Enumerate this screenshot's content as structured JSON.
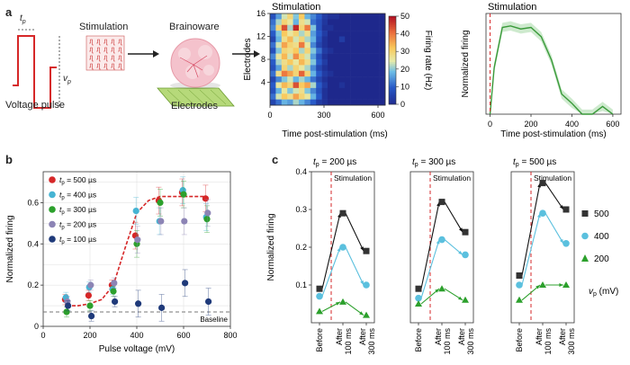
{
  "panel_a": {
    "label": "a",
    "tp_label": "t",
    "tp_sub": "p",
    "vp_label": "v",
    "vp_sub": "p",
    "pulse_caption": "Voltage pulse",
    "stimulation_caption": "Stimulation",
    "brainoware_caption": "Brainoware",
    "electrodes_caption": "Electrodes",
    "heatmap_title": "Stimulation",
    "heatmap_ylabel": "Electrodes",
    "heatmap_xlabel": "Time post-stimulation (ms)",
    "heatmap_xticks": [
      "0",
      "300",
      "600"
    ],
    "heatmap_yticks": [
      "16",
      "12",
      "8",
      "4"
    ],
    "colorbar_label": "Firing rate (Hz)",
    "colorbar_ticks": [
      "50",
      "40",
      "30",
      "20",
      "10",
      "0"
    ],
    "line_title": "Stimulation",
    "line_ylabel": "Normalized firing",
    "line_xlabel": "Time post-stimulation (ms)",
    "line_xticks": [
      "0",
      "200",
      "400",
      "600"
    ],
    "colors": {
      "green": "#5cb85c",
      "red": "#d62728",
      "blue": "#1f3fa0"
    }
  },
  "panel_b": {
    "label": "b",
    "xlabel": "Pulse voltage (mV)",
    "ylabel": "Normalized firing",
    "baseline_label": "Baseline",
    "legend": [
      {
        "t": "t",
        "sub": "p",
        "text": " = 500 µs",
        "color": "#d62728"
      },
      {
        "t": "t",
        "sub": "p",
        "text": " = 400 µs",
        "color": "#46b4d3"
      },
      {
        "t": "t",
        "sub": "p",
        "text": " = 300 µs",
        "color": "#2ca02c"
      },
      {
        "t": "t",
        "sub": "p",
        "text": " = 200 µs",
        "color": "#8c84b5"
      },
      {
        "t": "t",
        "sub": "p",
        "text": " = 100 µs",
        "color": "#1f3a7a"
      }
    ]
  },
  "panel_c": {
    "label": "c",
    "ylabel": "Normalized firing",
    "stim_label": "Stimulation",
    "subplots": [
      {
        "title_t": "t",
        "title_sub": "p",
        "title_rest": " = 200 µs"
      },
      {
        "title_t": "t",
        "title_sub": "p",
        "title_rest": " = 300 µs"
      },
      {
        "title_t": "t",
        "title_sub": "p",
        "title_rest": " = 500 µs"
      }
    ],
    "xticks": [
      "Before",
      "After 100 ms",
      "After 300 ms"
    ],
    "legend": [
      {
        "value": "500",
        "marker": "square",
        "color": "#333333"
      },
      {
        "value": "400",
        "marker": "circle",
        "color": "#5bc0de"
      },
      {
        "value": "200",
        "marker": "triangle",
        "color": "#2ca02c"
      }
    ],
    "legend_unit_v": "v",
    "legend_unit_sub": "p",
    "legend_unit_rest": " (mV)"
  },
  "chart_data": [
    {
      "id": "heatmap",
      "type": "heatmap",
      "title": "Stimulation",
      "xlabel": "Time post-stimulation (ms)",
      "ylabel": "Electrodes",
      "xlim": [
        0,
        600
      ],
      "ylim": [
        0,
        16
      ],
      "colorbar": {
        "label": "Firing rate (Hz)",
        "range": [
          0,
          50
        ]
      },
      "note": "approximate reading of cell colors; 16 rows x 20 time bins",
      "rows": [
        [
          8,
          16,
          24,
          30,
          20,
          32,
          18,
          14,
          10,
          4,
          2,
          2,
          0,
          0,
          0,
          0,
          0,
          0,
          0,
          0
        ],
        [
          12,
          22,
          30,
          26,
          18,
          28,
          24,
          12,
          8,
          3,
          0,
          0,
          0,
          0,
          0,
          0,
          0,
          0,
          0,
          0
        ],
        [
          14,
          30,
          44,
          22,
          48,
          30,
          40,
          20,
          8,
          2,
          2,
          0,
          0,
          0,
          0,
          0,
          0,
          0,
          0,
          0
        ],
        [
          10,
          20,
          32,
          26,
          30,
          22,
          28,
          16,
          10,
          4,
          0,
          0,
          0,
          0,
          0,
          0,
          0,
          0,
          0,
          0
        ],
        [
          6,
          18,
          28,
          34,
          24,
          30,
          22,
          18,
          8,
          2,
          0,
          0,
          4,
          0,
          0,
          0,
          0,
          0,
          0,
          0
        ],
        [
          12,
          24,
          36,
          30,
          28,
          40,
          26,
          14,
          6,
          2,
          0,
          0,
          0,
          0,
          0,
          0,
          0,
          0,
          0,
          0
        ],
        [
          8,
          20,
          30,
          28,
          32,
          22,
          30,
          20,
          12,
          4,
          2,
          0,
          0,
          0,
          0,
          0,
          0,
          0,
          0,
          0
        ],
        [
          14,
          26,
          34,
          24,
          38,
          30,
          24,
          16,
          8,
          2,
          0,
          0,
          0,
          0,
          0,
          0,
          0,
          0,
          0,
          0
        ],
        [
          10,
          22,
          28,
          32,
          26,
          34,
          28,
          20,
          10,
          4,
          0,
          0,
          0,
          0,
          0,
          0,
          0,
          0,
          0,
          0
        ],
        [
          8,
          16,
          30,
          22,
          30,
          26,
          22,
          14,
          6,
          2,
          0,
          0,
          0,
          0,
          0,
          0,
          0,
          0,
          0,
          0
        ],
        [
          12,
          28,
          40,
          36,
          30,
          42,
          30,
          18,
          10,
          4,
          2,
          0,
          0,
          0,
          0,
          0,
          0,
          0,
          0,
          0
        ],
        [
          6,
          14,
          20,
          24,
          18,
          22,
          18,
          12,
          6,
          2,
          0,
          0,
          0,
          0,
          0,
          0,
          0,
          0,
          0,
          0
        ],
        [
          10,
          26,
          34,
          30,
          44,
          32,
          36,
          22,
          10,
          4,
          0,
          0,
          2,
          0,
          0,
          0,
          0,
          0,
          0,
          0
        ],
        [
          8,
          18,
          26,
          20,
          24,
          28,
          20,
          14,
          8,
          2,
          0,
          0,
          0,
          0,
          0,
          0,
          0,
          0,
          0,
          0
        ],
        [
          12,
          24,
          32,
          28,
          36,
          30,
          26,
          18,
          10,
          2,
          0,
          0,
          0,
          0,
          0,
          0,
          0,
          0,
          0,
          0
        ],
        [
          6,
          12,
          18,
          16,
          22,
          18,
          14,
          10,
          4,
          2,
          0,
          0,
          0,
          0,
          0,
          0,
          0,
          0,
          0,
          0
        ]
      ]
    },
    {
      "id": "normalized_firing_time",
      "type": "line",
      "title": "Stimulation",
      "xlabel": "Time post-stimulation (ms)",
      "ylabel": "Normalized firing",
      "xlim": [
        -20,
        640
      ],
      "ylim": [
        0,
        0.65
      ],
      "x": [
        0,
        20,
        60,
        100,
        150,
        200,
        250,
        300,
        350,
        400,
        450,
        500,
        550,
        600
      ],
      "values": [
        0.0,
        0.3,
        0.56,
        0.57,
        0.55,
        0.56,
        0.5,
        0.35,
        0.13,
        0.07,
        0.0,
        0.0,
        0.05,
        0.0
      ]
    },
    {
      "id": "pulse_voltage_response",
      "type": "scatter",
      "xlabel": "Pulse voltage (mV)",
      "ylabel": "Normalized firing",
      "xlim": [
        0,
        800
      ],
      "ylim": [
        0,
        0.75
      ],
      "x": [
        100,
        200,
        300,
        400,
        500,
        600,
        700
      ],
      "series": [
        {
          "name": "tp = 500 µs",
          "values": [
            0.13,
            0.15,
            0.2,
            0.44,
            0.61,
            0.65,
            0.62
          ]
        },
        {
          "name": "tp = 400 µs",
          "values": [
            0.14,
            0.19,
            0.18,
            0.56,
            0.51,
            0.66,
            0.53
          ]
        },
        {
          "name": "tp = 300 µs",
          "values": [
            0.07,
            0.1,
            0.17,
            0.4,
            0.6,
            0.64,
            0.52
          ]
        },
        {
          "name": "tp = 200 µs",
          "values": [
            0.12,
            0.2,
            0.21,
            0.42,
            0.51,
            0.51,
            0.55
          ]
        },
        {
          "name": "tp = 100 µs",
          "values": [
            0.1,
            0.05,
            0.12,
            0.11,
            0.09,
            0.21,
            0.12
          ]
        }
      ],
      "fit": {
        "x": [
          100,
          150,
          200,
          250,
          300,
          350,
          400,
          450,
          500,
          550,
          600,
          650,
          700
        ],
        "values": [
          0.1,
          0.1,
          0.11,
          0.13,
          0.2,
          0.38,
          0.55,
          0.61,
          0.63,
          0.63,
          0.63,
          0.63,
          0.63
        ]
      },
      "baseline": 0.07
    },
    {
      "id": "tp_200",
      "type": "line",
      "title": "tp = 200 µs",
      "categories": [
        "Before",
        "After 100 ms",
        "After 300 ms"
      ],
      "ylim": [
        0,
        0.4
      ],
      "series": [
        {
          "name": "500",
          "values": [
            0.09,
            0.29,
            0.19
          ]
        },
        {
          "name": "400",
          "values": [
            0.07,
            0.2,
            0.1
          ]
        },
        {
          "name": "200",
          "values": [
            0.03,
            0.055,
            0.02
          ]
        }
      ]
    },
    {
      "id": "tp_300",
      "type": "line",
      "title": "tp = 300 µs",
      "categories": [
        "Before",
        "After 100 ms",
        "After 300 ms"
      ],
      "ylim": [
        0,
        0.4
      ],
      "series": [
        {
          "name": "500",
          "values": [
            0.09,
            0.32,
            0.24
          ]
        },
        {
          "name": "400",
          "values": [
            0.065,
            0.22,
            0.18
          ]
        },
        {
          "name": "200",
          "values": [
            0.05,
            0.09,
            0.06
          ]
        }
      ]
    },
    {
      "id": "tp_500",
      "type": "line",
      "title": "tp = 500 µs",
      "categories": [
        "Before",
        "After 100 ms",
        "After 300 ms"
      ],
      "ylim": [
        0,
        0.4
      ],
      "series": [
        {
          "name": "500",
          "values": [
            0.125,
            0.37,
            0.3
          ]
        },
        {
          "name": "400",
          "values": [
            0.1,
            0.29,
            0.21
          ]
        },
        {
          "name": "200",
          "values": [
            0.06,
            0.1,
            0.1
          ]
        }
      ]
    }
  ]
}
